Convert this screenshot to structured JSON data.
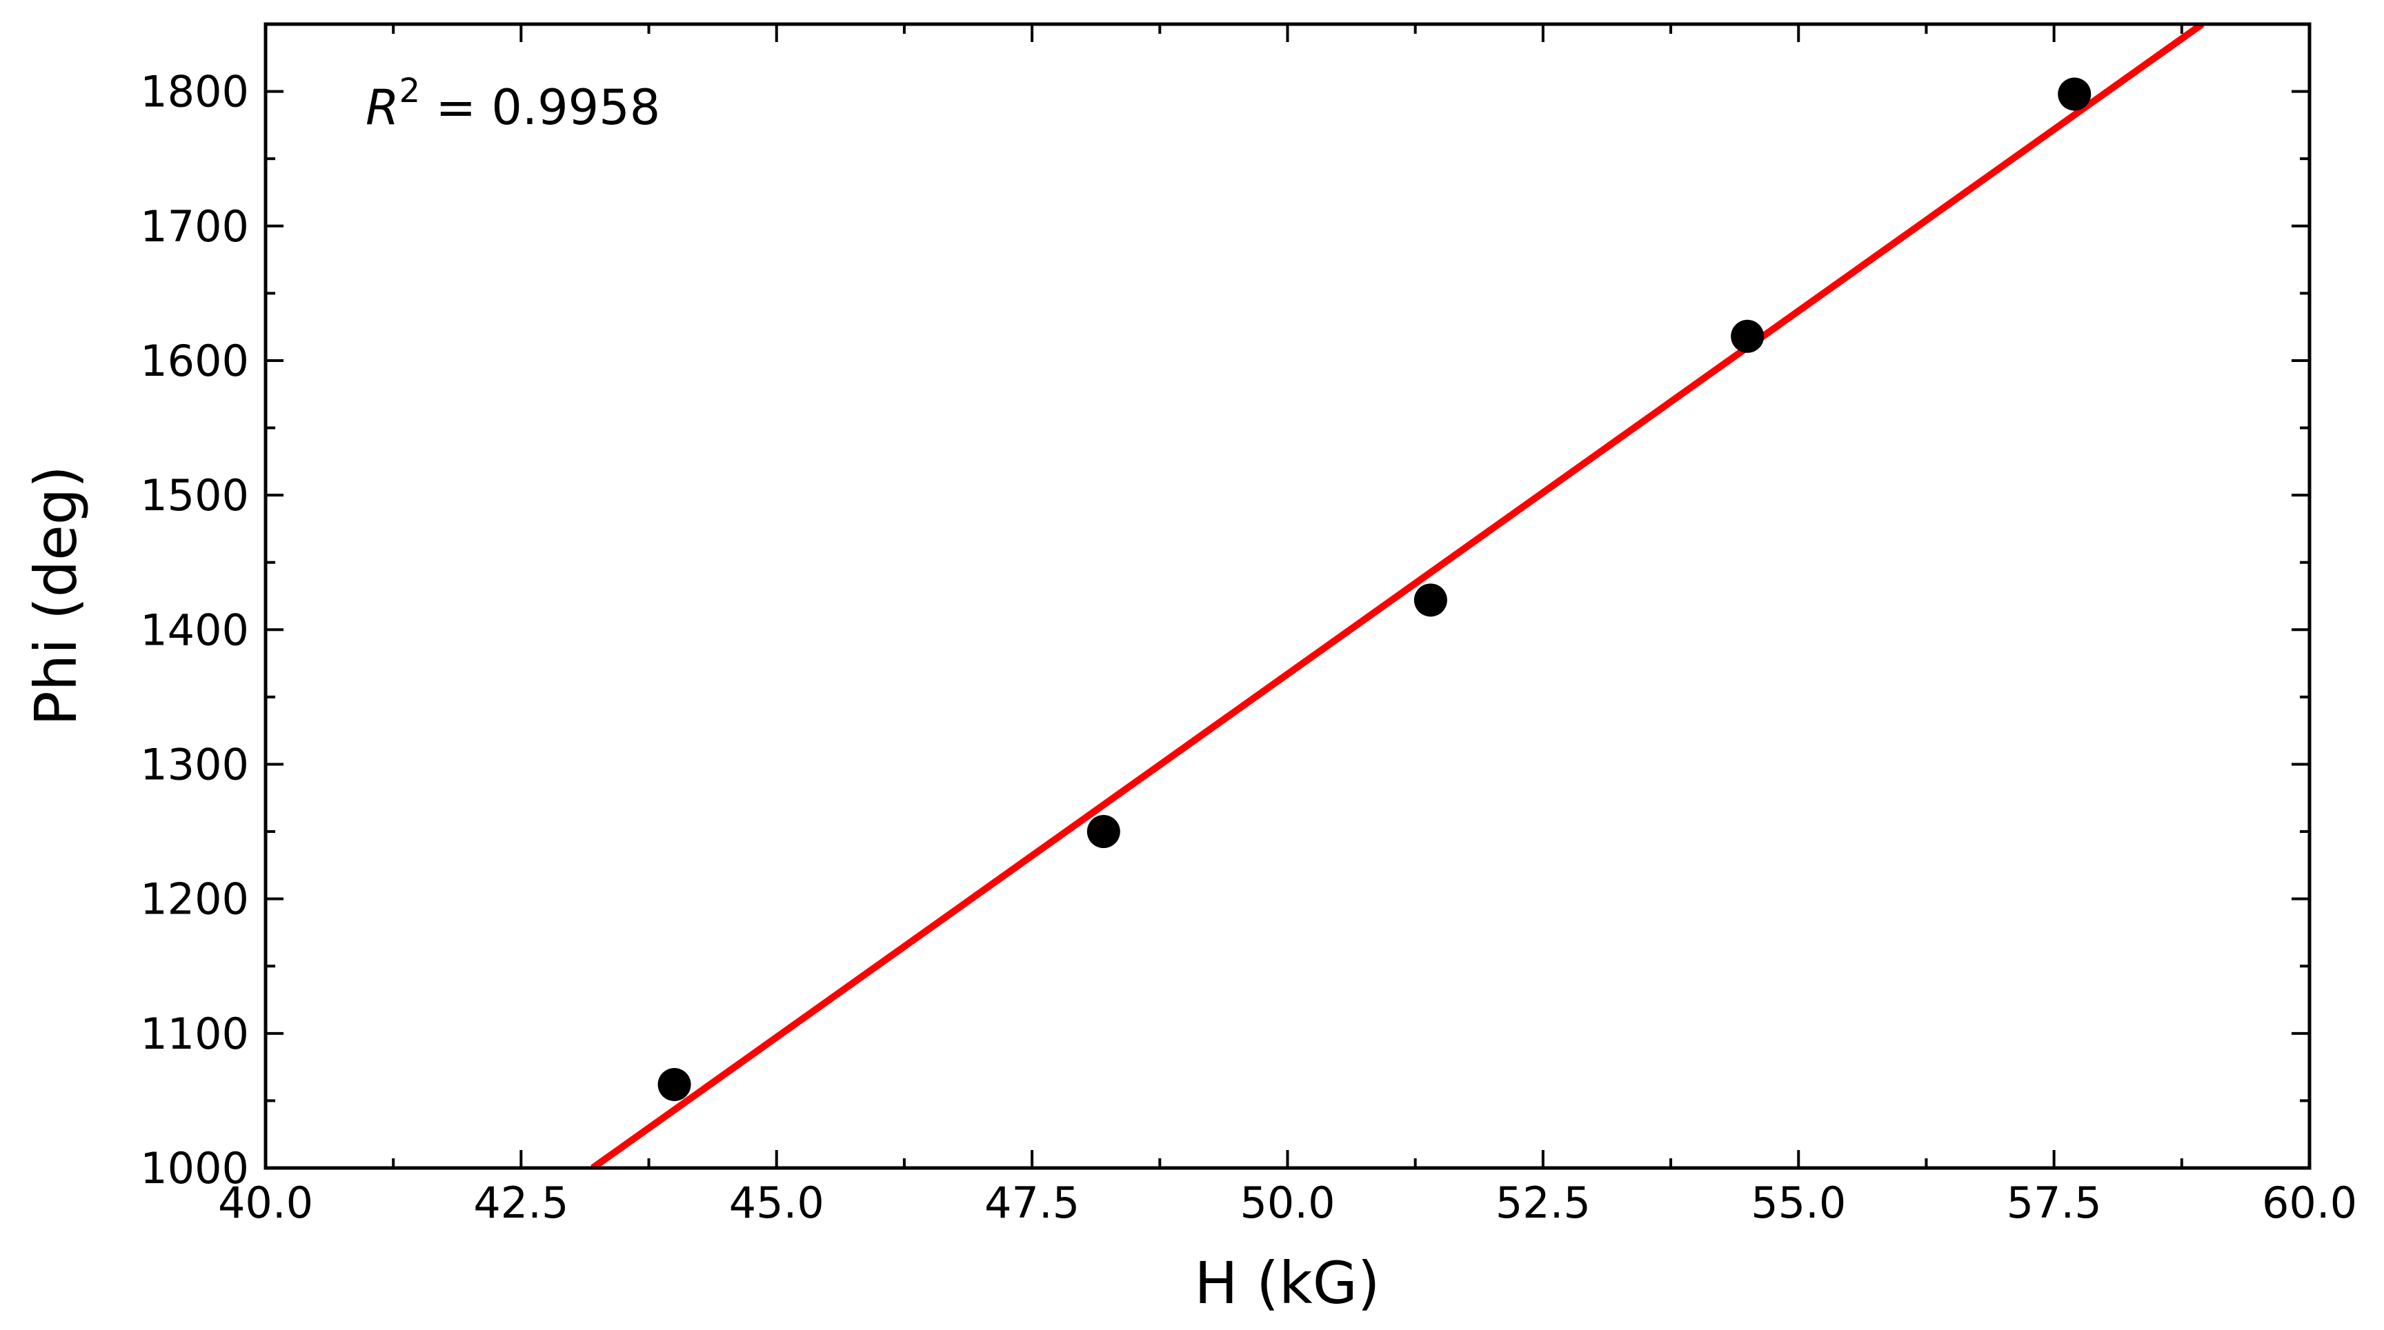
{
  "chart_data": {
    "type": "scatter",
    "xlabel": "H (kG)",
    "ylabel": "Phi (deg)",
    "xlim": [
      40.0,
      60.0
    ],
    "ylim": [
      1000,
      1850
    ],
    "x_ticks": [
      "40.0",
      "42.5",
      "45.0",
      "47.5",
      "50.0",
      "52.5",
      "55.0",
      "57.5",
      "60.0"
    ],
    "x_tick_values": [
      40.0,
      42.5,
      45.0,
      47.5,
      50.0,
      52.5,
      55.0,
      57.5,
      60.0
    ],
    "y_ticks": [
      "1000",
      "1100",
      "1200",
      "1300",
      "1400",
      "1500",
      "1600",
      "1700",
      "1800"
    ],
    "y_tick_values": [
      1000,
      1100,
      1200,
      1300,
      1400,
      1500,
      1600,
      1700,
      1800
    ],
    "series": [
      {
        "kind": "scatter",
        "color": "#000000",
        "x": [
          44.0,
          48.2,
          51.4,
          54.5,
          57.7
        ],
        "y": [
          1062,
          1250,
          1422,
          1618,
          1798
        ]
      },
      {
        "kind": "fit-line",
        "color": "#ff0000",
        "x": [
          43.2,
          58.95
        ],
        "y": [
          1000,
          1850
        ]
      }
    ],
    "annotation": {
      "symbol": "R",
      "superscript": "2",
      "equals": " = ",
      "value": "0.9958"
    },
    "grid": false,
    "ticks_direction": "in",
    "ticks_on_all_sides": true
  }
}
